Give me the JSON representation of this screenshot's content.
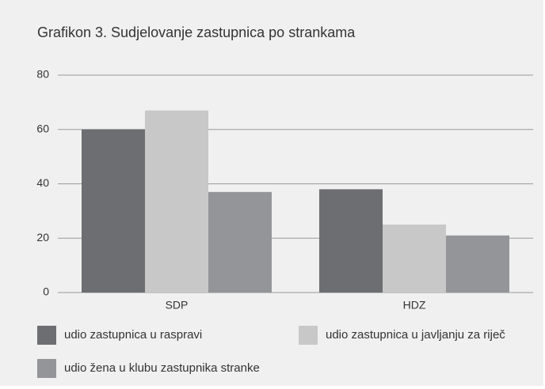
{
  "chart_data": {
    "type": "bar",
    "title": "Grafikon 3. Sudjelovanje zastupnica po strankama",
    "categories": [
      "SDP",
      "HDZ"
    ],
    "series": [
      {
        "name": "udio zastupnica u raspravi",
        "color": "#6d6e71",
        "values": [
          60,
          38
        ]
      },
      {
        "name": "udio zastupnica u javljanju za riječ",
        "color": "#c8c8c8",
        "values": [
          67,
          25
        ]
      },
      {
        "name": "udio žena u klubu zastupnika stranke",
        "color": "#939598",
        "values": [
          37,
          21
        ]
      }
    ],
    "ylim": [
      0,
      80
    ],
    "yticks": [
      0,
      20,
      40,
      60,
      80
    ],
    "grid": true
  }
}
